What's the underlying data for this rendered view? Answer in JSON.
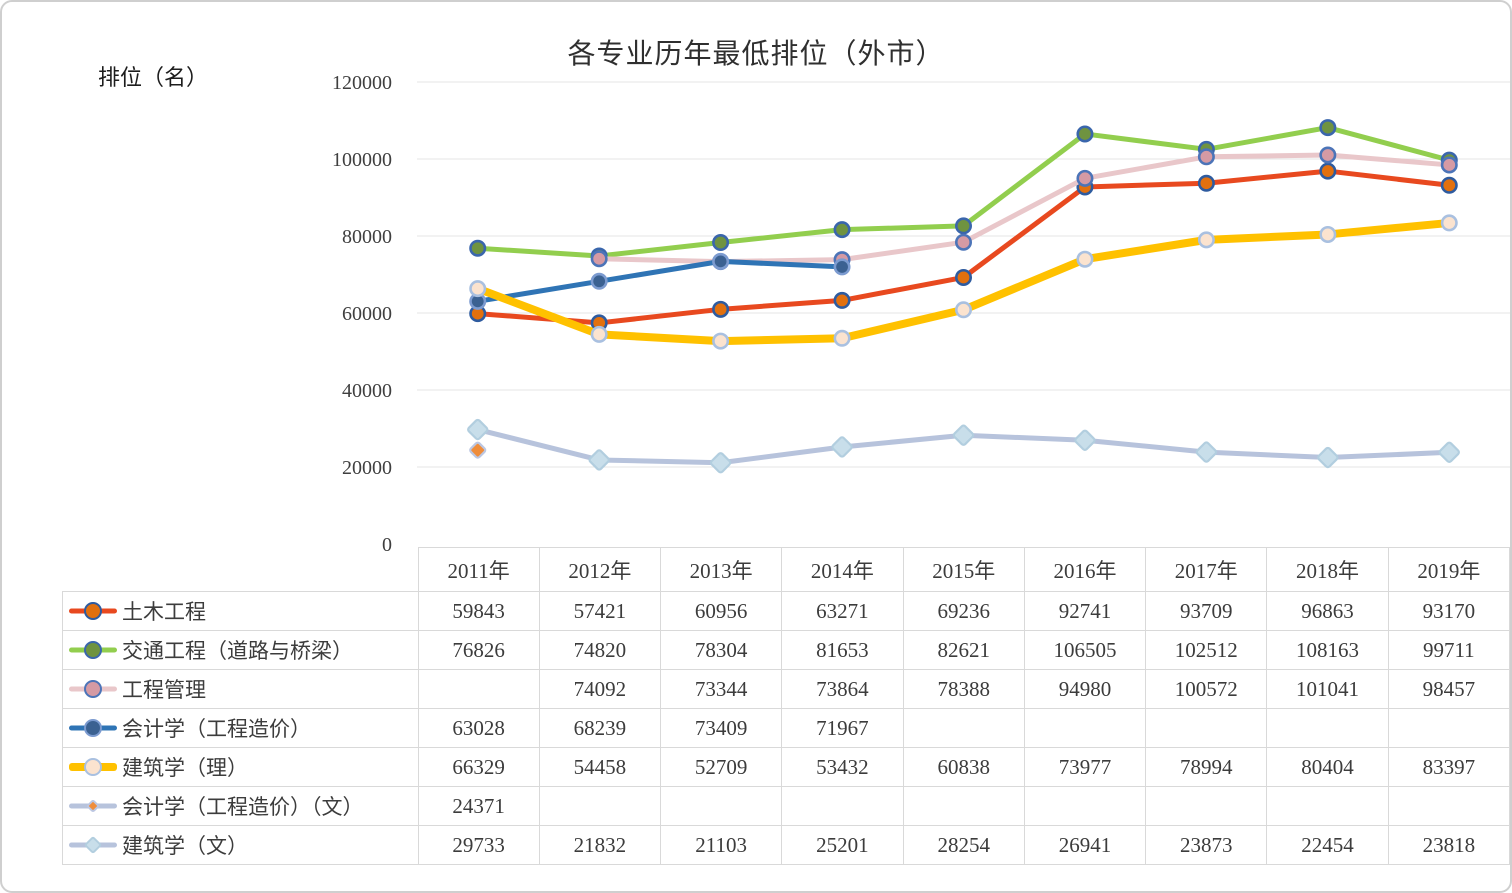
{
  "chart_data": {
    "type": "line",
    "title": "各专业历年最低排位（外市）",
    "y_axis_label": "排位（名）",
    "xlabel": "",
    "ylabel": "排位（名）",
    "categories": [
      "2011年",
      "2012年",
      "2013年",
      "2014年",
      "2015年",
      "2016年",
      "2017年",
      "2018年",
      "2019年"
    ],
    "ylim": [
      0,
      120000
    ],
    "y_tick_step": 20000,
    "y_ticks": [
      0,
      20000,
      40000,
      60000,
      80000,
      100000,
      120000
    ],
    "grid": "horizontal",
    "legend_position": "table-left-column",
    "series": [
      {
        "name": "土木工程",
        "marker": "circle",
        "line_color": "#E8491F",
        "line_width": 5,
        "marker_fill": "#E2700E",
        "marker_stroke": "#2E5B9F",
        "marker_size": 7.2,
        "values": [
          59843,
          57421,
          60956,
          63271,
          69236,
          92741,
          93709,
          96863,
          93170
        ]
      },
      {
        "name": "交通工程（道路与桥梁）",
        "marker": "circle",
        "line_color": "#92CE4E",
        "line_width": 5,
        "marker_fill": "#6F9340",
        "marker_stroke": "#3A66AC",
        "marker_size": 7.2,
        "values": [
          76826,
          74820,
          78304,
          81653,
          82621,
          106505,
          102512,
          108163,
          99711
        ]
      },
      {
        "name": "工程管理",
        "marker": "circle",
        "line_color": "#E9C7CA",
        "line_width": 5,
        "marker_fill": "#D59AA4",
        "marker_stroke": "#4C74B8",
        "marker_size": 7.2,
        "values": [
          null,
          74092,
          73344,
          73864,
          78388,
          94980,
          100572,
          101041,
          98457
        ]
      },
      {
        "name": "会计学（工程造价）",
        "marker": "circle",
        "line_color": "#2F74B5",
        "line_width": 5,
        "marker_fill": "#3B6191",
        "marker_stroke": "#7C9BD0",
        "marker_size": 7.2,
        "values": [
          63028,
          68239,
          73409,
          71967,
          null,
          null,
          null,
          null,
          null
        ]
      },
      {
        "name": "建筑学（理）",
        "marker": "circle",
        "line_color": "#FFC100",
        "line_width": 8,
        "marker_fill": "#FBE3CF",
        "marker_stroke": "#A9C0E0",
        "marker_size": 7.2,
        "values": [
          66329,
          54458,
          52709,
          53432,
          60838,
          73977,
          78994,
          80404,
          83397
        ]
      },
      {
        "name": "会计学（工程造价）（文）",
        "marker": "diamond",
        "line_color": "#B7C3DC",
        "line_width": 5,
        "marker_fill": "#EF8D3B",
        "marker_stroke": "#BCC7E2",
        "marker_size": 6,
        "values": [
          24371,
          null,
          null,
          null,
          null,
          null,
          null,
          null,
          null
        ]
      },
      {
        "name": "建筑学（文）",
        "marker": "diamond",
        "line_color": "#B7C3DC",
        "line_width": 5,
        "marker_fill": "#C8DEEA",
        "marker_stroke": "#B2CEDF",
        "marker_size": 7.5,
        "values": [
          29733,
          21832,
          21103,
          25201,
          28254,
          26941,
          23873,
          22454,
          23818
        ]
      }
    ],
    "style": {
      "gridline_color": "#E4E4E4",
      "table_border_color": "#D9D9D9",
      "tick_label_color": "#3F3F3F"
    }
  }
}
